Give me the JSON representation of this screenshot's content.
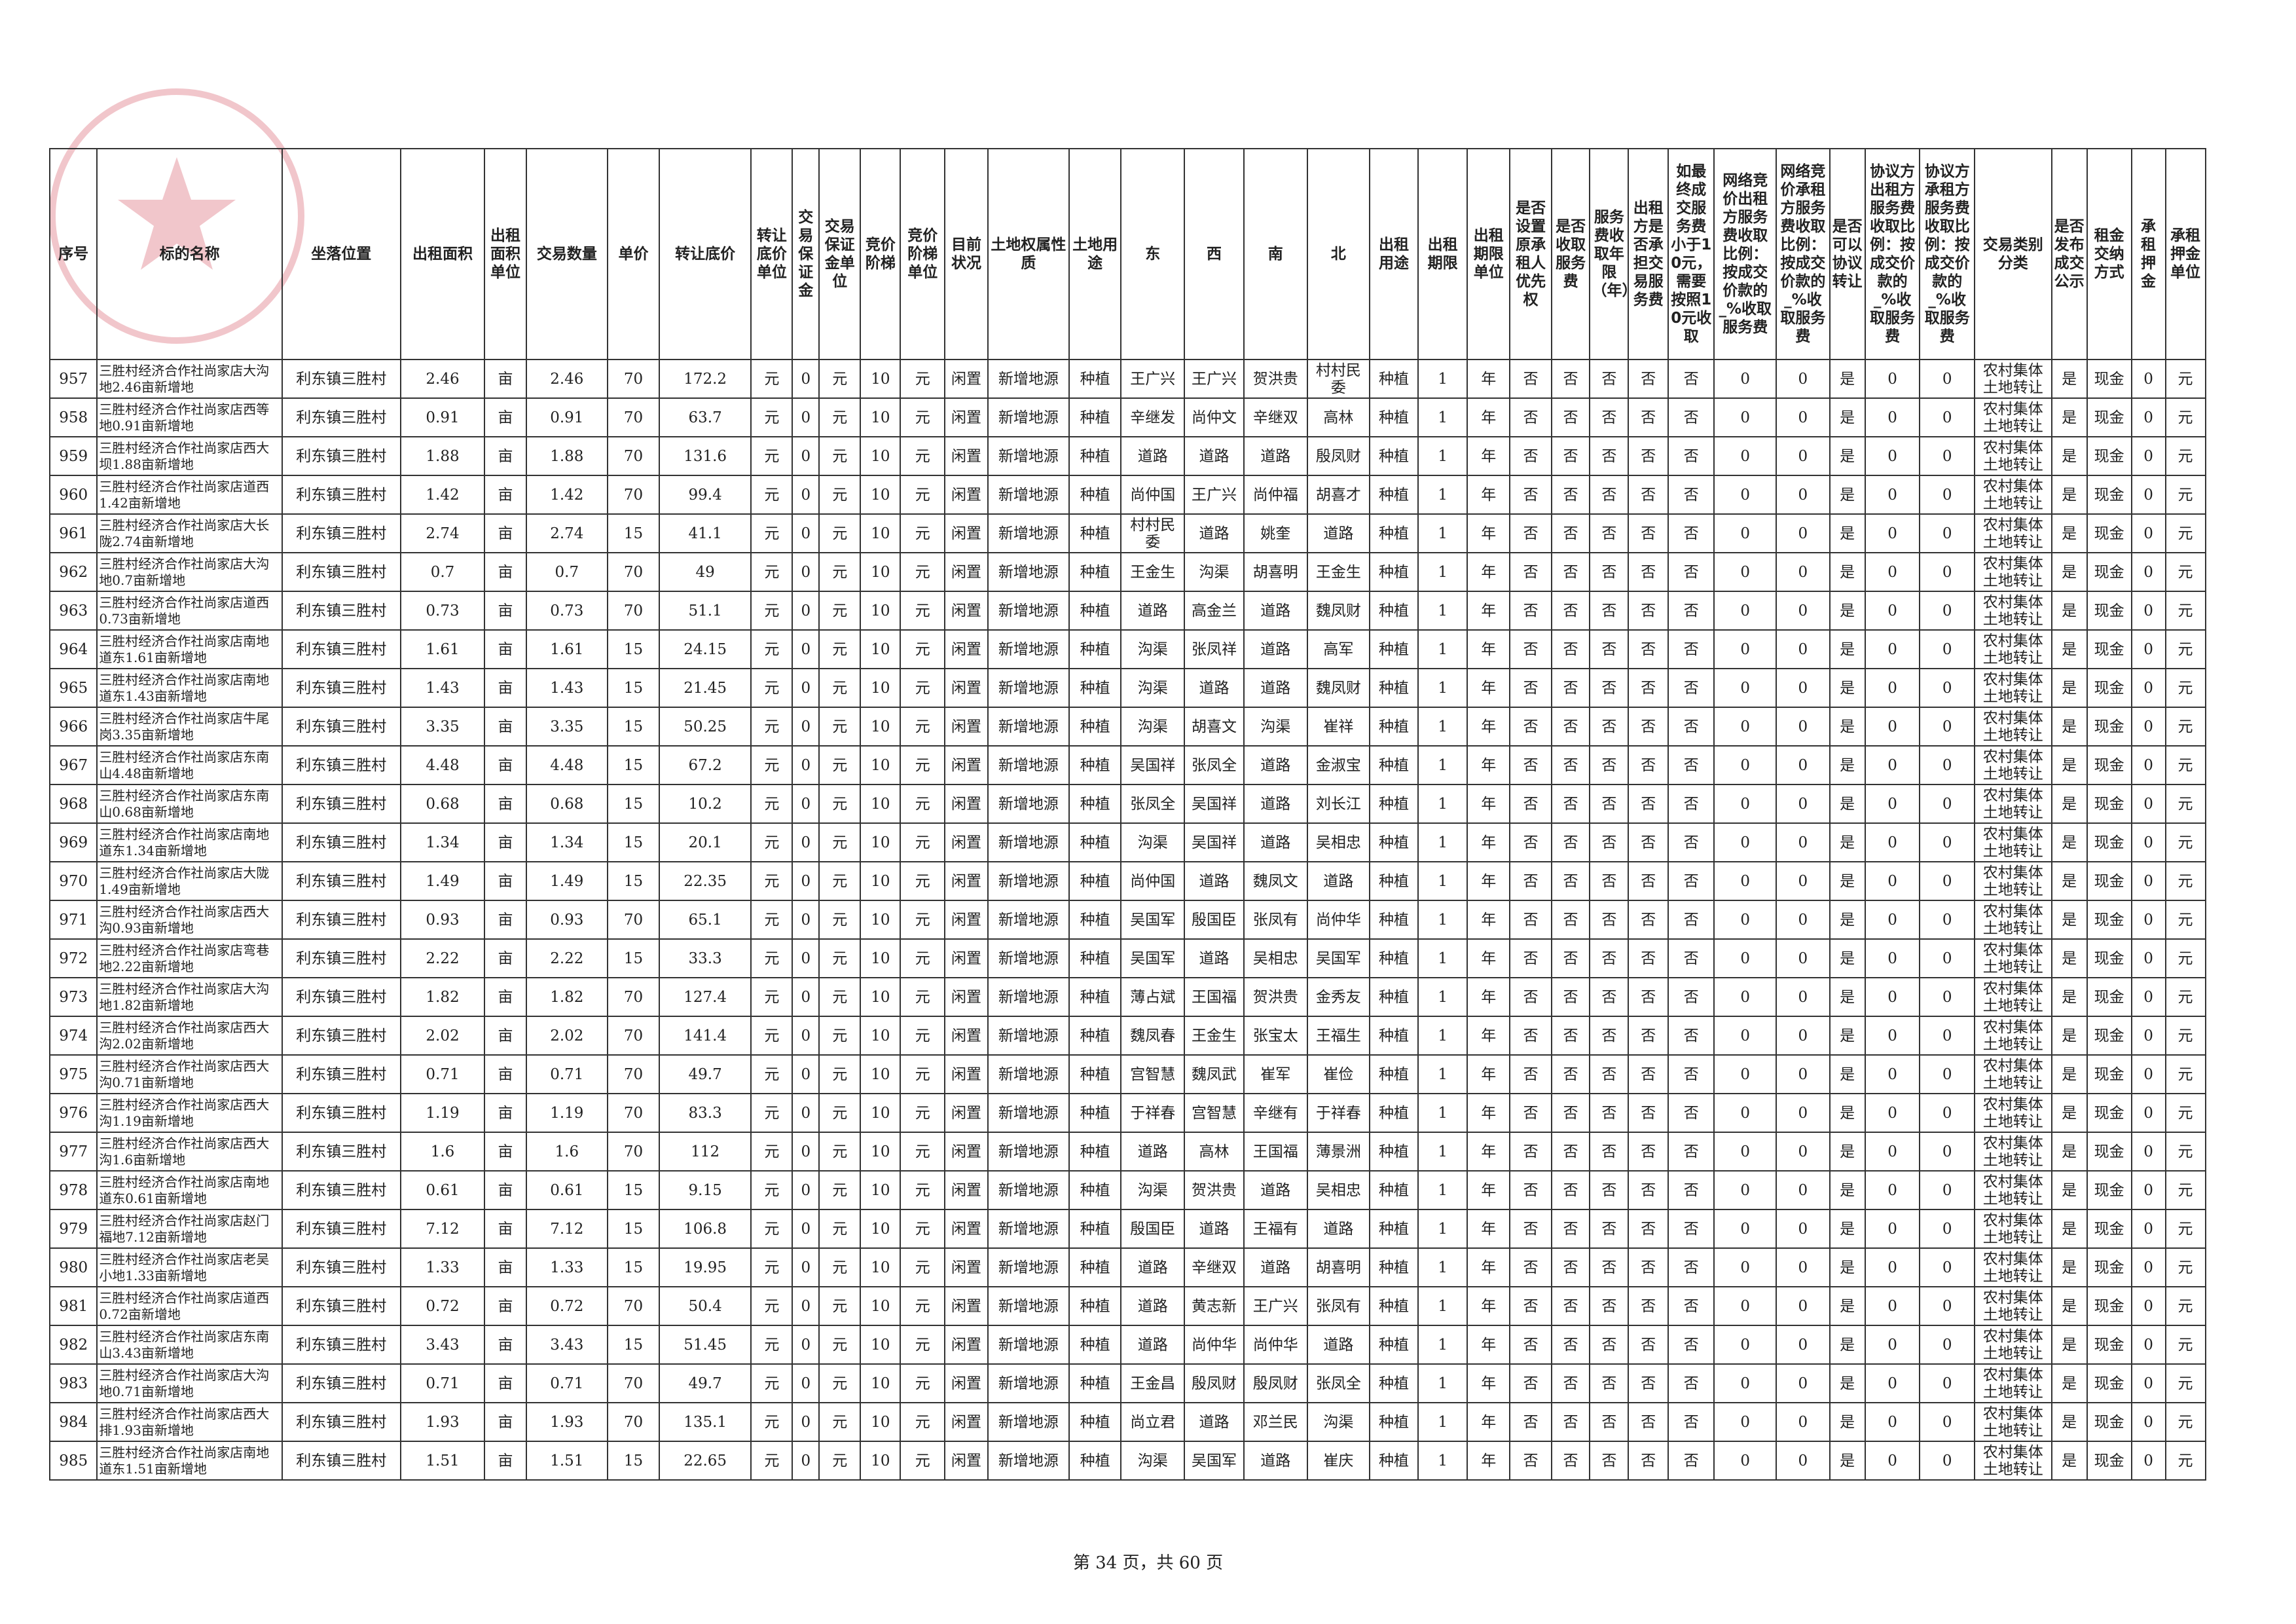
{
  "table": {
    "headers": [
      "序号",
      "标的名称",
      "坐落位置",
      "出租面积",
      "出租面积单位",
      "交易数量",
      "单价",
      "转让底价",
      "转让底价单位",
      "交易保证金",
      "交易保证金单位",
      "竞价阶梯",
      "竞价阶梯单位",
      "目前状况",
      "土地权属性质",
      "土地用途",
      "东",
      "西",
      "南",
      "北",
      "出租用途",
      "出租期限",
      "出租期限单位",
      "是否设置原承租人优先权",
      "是否收取服务费",
      "服务费收取年限（年）",
      "出租方是否承担交易服务费",
      "如最终成交服务费小于10元，需要按照10元收取",
      "网络竞价出租方服务费收取比例：按成交价款的_%收取服务费",
      "网络竞价承租方服务费收取比例：按成交价款的_%收取服务费",
      "是否可以协议转让",
      "协议方出租方服务费收取比例：按成交价款的_%收取服务费",
      "协议方承租方服务费收取比例：按成交价款的_%收取服务费",
      "交易类别分类",
      "是否发布成交公示",
      "租金交纳方式",
      "承租押金",
      "承租押金单位"
    ],
    "rows": [
      [
        "957",
        "三胜村经济合作社尚家店大沟地2.46亩新增地",
        "利东镇三胜村",
        "2.46",
        "亩",
        "2.46",
        "70",
        "172.2",
        "元",
        "0",
        "元",
        "10",
        "元",
        "闲置",
        "新增地源",
        "种植",
        "王广兴",
        "王广兴",
        "贺洪贵",
        "村村民委",
        "种植",
        "1",
        "年",
        "否",
        "否",
        "否",
        "否",
        "否",
        "0",
        "0",
        "是",
        "0",
        "0",
        "农村集体土地转让",
        "是",
        "现金",
        "0",
        "元"
      ],
      [
        "958",
        "三胜村经济合作社尚家店西等地0.91亩新增地",
        "利东镇三胜村",
        "0.91",
        "亩",
        "0.91",
        "70",
        "63.7",
        "元",
        "0",
        "元",
        "10",
        "元",
        "闲置",
        "新增地源",
        "种植",
        "辛继发",
        "尚仲文",
        "辛继双",
        "高林",
        "种植",
        "1",
        "年",
        "否",
        "否",
        "否",
        "否",
        "否",
        "0",
        "0",
        "是",
        "0",
        "0",
        "农村集体土地转让",
        "是",
        "现金",
        "0",
        "元"
      ],
      [
        "959",
        "三胜村经济合作社尚家店西大坝1.88亩新增地",
        "利东镇三胜村",
        "1.88",
        "亩",
        "1.88",
        "70",
        "131.6",
        "元",
        "0",
        "元",
        "10",
        "元",
        "闲置",
        "新增地源",
        "种植",
        "道路",
        "道路",
        "道路",
        "殷凤财",
        "种植",
        "1",
        "年",
        "否",
        "否",
        "否",
        "否",
        "否",
        "0",
        "0",
        "是",
        "0",
        "0",
        "农村集体土地转让",
        "是",
        "现金",
        "0",
        "元"
      ],
      [
        "960",
        "三胜村经济合作社尚家店道西1.42亩新增地",
        "利东镇三胜村",
        "1.42",
        "亩",
        "1.42",
        "70",
        "99.4",
        "元",
        "0",
        "元",
        "10",
        "元",
        "闲置",
        "新增地源",
        "种植",
        "尚仲国",
        "王广兴",
        "尚仲福",
        "胡喜才",
        "种植",
        "1",
        "年",
        "否",
        "否",
        "否",
        "否",
        "否",
        "0",
        "0",
        "是",
        "0",
        "0",
        "农村集体土地转让",
        "是",
        "现金",
        "0",
        "元"
      ],
      [
        "961",
        "三胜村经济合作社尚家店大长陇2.74亩新增地",
        "利东镇三胜村",
        "2.74",
        "亩",
        "2.74",
        "15",
        "41.1",
        "元",
        "0",
        "元",
        "10",
        "元",
        "闲置",
        "新增地源",
        "种植",
        "村村民委",
        "道路",
        "姚奎",
        "道路",
        "种植",
        "1",
        "年",
        "否",
        "否",
        "否",
        "否",
        "否",
        "0",
        "0",
        "是",
        "0",
        "0",
        "农村集体土地转让",
        "是",
        "现金",
        "0",
        "元"
      ],
      [
        "962",
        "三胜村经济合作社尚家店大沟地0.7亩新增地",
        "利东镇三胜村",
        "0.7",
        "亩",
        "0.7",
        "70",
        "49",
        "元",
        "0",
        "元",
        "10",
        "元",
        "闲置",
        "新增地源",
        "种植",
        "王金生",
        "沟渠",
        "胡喜明",
        "王金生",
        "种植",
        "1",
        "年",
        "否",
        "否",
        "否",
        "否",
        "否",
        "0",
        "0",
        "是",
        "0",
        "0",
        "农村集体土地转让",
        "是",
        "现金",
        "0",
        "元"
      ],
      [
        "963",
        "三胜村经济合作社尚家店道西0.73亩新增地",
        "利东镇三胜村",
        "0.73",
        "亩",
        "0.73",
        "70",
        "51.1",
        "元",
        "0",
        "元",
        "10",
        "元",
        "闲置",
        "新增地源",
        "种植",
        "道路",
        "高金兰",
        "道路",
        "魏凤财",
        "种植",
        "1",
        "年",
        "否",
        "否",
        "否",
        "否",
        "否",
        "0",
        "0",
        "是",
        "0",
        "0",
        "农村集体土地转让",
        "是",
        "现金",
        "0",
        "元"
      ],
      [
        "964",
        "三胜村经济合作社尚家店南地道东1.61亩新增地",
        "利东镇三胜村",
        "1.61",
        "亩",
        "1.61",
        "15",
        "24.15",
        "元",
        "0",
        "元",
        "10",
        "元",
        "闲置",
        "新增地源",
        "种植",
        "沟渠",
        "张凤祥",
        "道路",
        "高军",
        "种植",
        "1",
        "年",
        "否",
        "否",
        "否",
        "否",
        "否",
        "0",
        "0",
        "是",
        "0",
        "0",
        "农村集体土地转让",
        "是",
        "现金",
        "0",
        "元"
      ],
      [
        "965",
        "三胜村经济合作社尚家店南地道东1.43亩新增地",
        "利东镇三胜村",
        "1.43",
        "亩",
        "1.43",
        "15",
        "21.45",
        "元",
        "0",
        "元",
        "10",
        "元",
        "闲置",
        "新增地源",
        "种植",
        "沟渠",
        "道路",
        "道路",
        "魏凤财",
        "种植",
        "1",
        "年",
        "否",
        "否",
        "否",
        "否",
        "否",
        "0",
        "0",
        "是",
        "0",
        "0",
        "农村集体土地转让",
        "是",
        "现金",
        "0",
        "元"
      ],
      [
        "966",
        "三胜村经济合作社尚家店牛尾岗3.35亩新增地",
        "利东镇三胜村",
        "3.35",
        "亩",
        "3.35",
        "15",
        "50.25",
        "元",
        "0",
        "元",
        "10",
        "元",
        "闲置",
        "新增地源",
        "种植",
        "沟渠",
        "胡喜文",
        "沟渠",
        "崔祥",
        "种植",
        "1",
        "年",
        "否",
        "否",
        "否",
        "否",
        "否",
        "0",
        "0",
        "是",
        "0",
        "0",
        "农村集体土地转让",
        "是",
        "现金",
        "0",
        "元"
      ],
      [
        "967",
        "三胜村经济合作社尚家店东南山4.48亩新增地",
        "利东镇三胜村",
        "4.48",
        "亩",
        "4.48",
        "15",
        "67.2",
        "元",
        "0",
        "元",
        "10",
        "元",
        "闲置",
        "新增地源",
        "种植",
        "吴国祥",
        "张凤全",
        "道路",
        "金淑宝",
        "种植",
        "1",
        "年",
        "否",
        "否",
        "否",
        "否",
        "否",
        "0",
        "0",
        "是",
        "0",
        "0",
        "农村集体土地转让",
        "是",
        "现金",
        "0",
        "元"
      ],
      [
        "968",
        "三胜村经济合作社尚家店东南山0.68亩新增地",
        "利东镇三胜村",
        "0.68",
        "亩",
        "0.68",
        "15",
        "10.2",
        "元",
        "0",
        "元",
        "10",
        "元",
        "闲置",
        "新增地源",
        "种植",
        "张凤全",
        "吴国祥",
        "道路",
        "刘长江",
        "种植",
        "1",
        "年",
        "否",
        "否",
        "否",
        "否",
        "否",
        "0",
        "0",
        "是",
        "0",
        "0",
        "农村集体土地转让",
        "是",
        "现金",
        "0",
        "元"
      ],
      [
        "969",
        "三胜村经济合作社尚家店南地道东1.34亩新增地",
        "利东镇三胜村",
        "1.34",
        "亩",
        "1.34",
        "15",
        "20.1",
        "元",
        "0",
        "元",
        "10",
        "元",
        "闲置",
        "新增地源",
        "种植",
        "沟渠",
        "吴国祥",
        "道路",
        "吴相忠",
        "种植",
        "1",
        "年",
        "否",
        "否",
        "否",
        "否",
        "否",
        "0",
        "0",
        "是",
        "0",
        "0",
        "农村集体土地转让",
        "是",
        "现金",
        "0",
        "元"
      ],
      [
        "970",
        "三胜村经济合作社尚家店大陇1.49亩新增地",
        "利东镇三胜村",
        "1.49",
        "亩",
        "1.49",
        "15",
        "22.35",
        "元",
        "0",
        "元",
        "10",
        "元",
        "闲置",
        "新增地源",
        "种植",
        "尚仲国",
        "道路",
        "魏凤文",
        "道路",
        "种植",
        "1",
        "年",
        "否",
        "否",
        "否",
        "否",
        "否",
        "0",
        "0",
        "是",
        "0",
        "0",
        "农村集体土地转让",
        "是",
        "现金",
        "0",
        "元"
      ],
      [
        "971",
        "三胜村经济合作社尚家店西大沟0.93亩新增地",
        "利东镇三胜村",
        "0.93",
        "亩",
        "0.93",
        "70",
        "65.1",
        "元",
        "0",
        "元",
        "10",
        "元",
        "闲置",
        "新增地源",
        "种植",
        "吴国军",
        "殷国臣",
        "张凤有",
        "尚仲华",
        "种植",
        "1",
        "年",
        "否",
        "否",
        "否",
        "否",
        "否",
        "0",
        "0",
        "是",
        "0",
        "0",
        "农村集体土地转让",
        "是",
        "现金",
        "0",
        "元"
      ],
      [
        "972",
        "三胜村经济合作社尚家店弯巷地2.22亩新增地",
        "利东镇三胜村",
        "2.22",
        "亩",
        "2.22",
        "15",
        "33.3",
        "元",
        "0",
        "元",
        "10",
        "元",
        "闲置",
        "新增地源",
        "种植",
        "吴国军",
        "道路",
        "吴相忠",
        "吴国军",
        "种植",
        "1",
        "年",
        "否",
        "否",
        "否",
        "否",
        "否",
        "0",
        "0",
        "是",
        "0",
        "0",
        "农村集体土地转让",
        "是",
        "现金",
        "0",
        "元"
      ],
      [
        "973",
        "三胜村经济合作社尚家店大沟地1.82亩新增地",
        "利东镇三胜村",
        "1.82",
        "亩",
        "1.82",
        "70",
        "127.4",
        "元",
        "0",
        "元",
        "10",
        "元",
        "闲置",
        "新增地源",
        "种植",
        "薄占斌",
        "王国福",
        "贺洪贵",
        "金秀友",
        "种植",
        "1",
        "年",
        "否",
        "否",
        "否",
        "否",
        "否",
        "0",
        "0",
        "是",
        "0",
        "0",
        "农村集体土地转让",
        "是",
        "现金",
        "0",
        "元"
      ],
      [
        "974",
        "三胜村经济合作社尚家店西大沟2.02亩新增地",
        "利东镇三胜村",
        "2.02",
        "亩",
        "2.02",
        "70",
        "141.4",
        "元",
        "0",
        "元",
        "10",
        "元",
        "闲置",
        "新增地源",
        "种植",
        "魏凤春",
        "王金生",
        "张宝太",
        "王福生",
        "种植",
        "1",
        "年",
        "否",
        "否",
        "否",
        "否",
        "否",
        "0",
        "0",
        "是",
        "0",
        "0",
        "农村集体土地转让",
        "是",
        "现金",
        "0",
        "元"
      ],
      [
        "975",
        "三胜村经济合作社尚家店西大沟0.71亩新增地",
        "利东镇三胜村",
        "0.71",
        "亩",
        "0.71",
        "70",
        "49.7",
        "元",
        "0",
        "元",
        "10",
        "元",
        "闲置",
        "新增地源",
        "种植",
        "宫智慧",
        "魏凤武",
        "崔军",
        "崔俭",
        "种植",
        "1",
        "年",
        "否",
        "否",
        "否",
        "否",
        "否",
        "0",
        "0",
        "是",
        "0",
        "0",
        "农村集体土地转让",
        "是",
        "现金",
        "0",
        "元"
      ],
      [
        "976",
        "三胜村经济合作社尚家店西大沟1.19亩新增地",
        "利东镇三胜村",
        "1.19",
        "亩",
        "1.19",
        "70",
        "83.3",
        "元",
        "0",
        "元",
        "10",
        "元",
        "闲置",
        "新增地源",
        "种植",
        "于祥春",
        "宫智慧",
        "辛继有",
        "于祥春",
        "种植",
        "1",
        "年",
        "否",
        "否",
        "否",
        "否",
        "否",
        "0",
        "0",
        "是",
        "0",
        "0",
        "农村集体土地转让",
        "是",
        "现金",
        "0",
        "元"
      ],
      [
        "977",
        "三胜村经济合作社尚家店西大沟1.6亩新增地",
        "利东镇三胜村",
        "1.6",
        "亩",
        "1.6",
        "70",
        "112",
        "元",
        "0",
        "元",
        "10",
        "元",
        "闲置",
        "新增地源",
        "种植",
        "道路",
        "高林",
        "王国福",
        "薄景洲",
        "种植",
        "1",
        "年",
        "否",
        "否",
        "否",
        "否",
        "否",
        "0",
        "0",
        "是",
        "0",
        "0",
        "农村集体土地转让",
        "是",
        "现金",
        "0",
        "元"
      ],
      [
        "978",
        "三胜村经济合作社尚家店南地道东0.61亩新增地",
        "利东镇三胜村",
        "0.61",
        "亩",
        "0.61",
        "15",
        "9.15",
        "元",
        "0",
        "元",
        "10",
        "元",
        "闲置",
        "新增地源",
        "种植",
        "沟渠",
        "贺洪贵",
        "道路",
        "吴相忠",
        "种植",
        "1",
        "年",
        "否",
        "否",
        "否",
        "否",
        "否",
        "0",
        "0",
        "是",
        "0",
        "0",
        "农村集体土地转让",
        "是",
        "现金",
        "0",
        "元"
      ],
      [
        "979",
        "三胜村经济合作社尚家店赵门福地7.12亩新增地",
        "利东镇三胜村",
        "7.12",
        "亩",
        "7.12",
        "15",
        "106.8",
        "元",
        "0",
        "元",
        "10",
        "元",
        "闲置",
        "新增地源",
        "种植",
        "殷国臣",
        "道路",
        "王福有",
        "道路",
        "种植",
        "1",
        "年",
        "否",
        "否",
        "否",
        "否",
        "否",
        "0",
        "0",
        "是",
        "0",
        "0",
        "农村集体土地转让",
        "是",
        "现金",
        "0",
        "元"
      ],
      [
        "980",
        "三胜村经济合作社尚家店老吴小地1.33亩新增地",
        "利东镇三胜村",
        "1.33",
        "亩",
        "1.33",
        "15",
        "19.95",
        "元",
        "0",
        "元",
        "10",
        "元",
        "闲置",
        "新增地源",
        "种植",
        "道路",
        "辛继双",
        "道路",
        "胡喜明",
        "种植",
        "1",
        "年",
        "否",
        "否",
        "否",
        "否",
        "否",
        "0",
        "0",
        "是",
        "0",
        "0",
        "农村集体土地转让",
        "是",
        "现金",
        "0",
        "元"
      ],
      [
        "981",
        "三胜村经济合作社尚家店道西0.72亩新增地",
        "利东镇三胜村",
        "0.72",
        "亩",
        "0.72",
        "70",
        "50.4",
        "元",
        "0",
        "元",
        "10",
        "元",
        "闲置",
        "新增地源",
        "种植",
        "道路",
        "黄志新",
        "王广兴",
        "张凤有",
        "种植",
        "1",
        "年",
        "否",
        "否",
        "否",
        "否",
        "否",
        "0",
        "0",
        "是",
        "0",
        "0",
        "农村集体土地转让",
        "是",
        "现金",
        "0",
        "元"
      ],
      [
        "982",
        "三胜村经济合作社尚家店东南山3.43亩新增地",
        "利东镇三胜村",
        "3.43",
        "亩",
        "3.43",
        "15",
        "51.45",
        "元",
        "0",
        "元",
        "10",
        "元",
        "闲置",
        "新增地源",
        "种植",
        "道路",
        "尚仲华",
        "尚仲华",
        "道路",
        "种植",
        "1",
        "年",
        "否",
        "否",
        "否",
        "否",
        "否",
        "0",
        "0",
        "是",
        "0",
        "0",
        "农村集体土地转让",
        "是",
        "现金",
        "0",
        "元"
      ],
      [
        "983",
        "三胜村经济合作社尚家店大沟地0.71亩新增地",
        "利东镇三胜村",
        "0.71",
        "亩",
        "0.71",
        "70",
        "49.7",
        "元",
        "0",
        "元",
        "10",
        "元",
        "闲置",
        "新增地源",
        "种植",
        "王金昌",
        "殷凤财",
        "殷凤财",
        "张凤全",
        "种植",
        "1",
        "年",
        "否",
        "否",
        "否",
        "否",
        "否",
        "0",
        "0",
        "是",
        "0",
        "0",
        "农村集体土地转让",
        "是",
        "现金",
        "0",
        "元"
      ],
      [
        "984",
        "三胜村经济合作社尚家店西大排1.93亩新增地",
        "利东镇三胜村",
        "1.93",
        "亩",
        "1.93",
        "70",
        "135.1",
        "元",
        "0",
        "元",
        "10",
        "元",
        "闲置",
        "新增地源",
        "种植",
        "尚立君",
        "道路",
        "邓兰民",
        "沟渠",
        "种植",
        "1",
        "年",
        "否",
        "否",
        "否",
        "否",
        "否",
        "0",
        "0",
        "是",
        "0",
        "0",
        "农村集体土地转让",
        "是",
        "现金",
        "0",
        "元"
      ],
      [
        "985",
        "三胜村经济合作社尚家店南地道东1.51亩新增地",
        "利东镇三胜村",
        "1.51",
        "亩",
        "1.51",
        "15",
        "22.65",
        "元",
        "0",
        "元",
        "10",
        "元",
        "闲置",
        "新增地源",
        "种植",
        "沟渠",
        "吴国军",
        "道路",
        "崔庆",
        "种植",
        "1",
        "年",
        "否",
        "否",
        "否",
        "否",
        "否",
        "0",
        "0",
        "是",
        "0",
        "0",
        "农村集体土地转让",
        "是",
        "现金",
        "0",
        "元"
      ]
    ]
  },
  "footer": {
    "page": "第 34 页，共 60 页"
  }
}
